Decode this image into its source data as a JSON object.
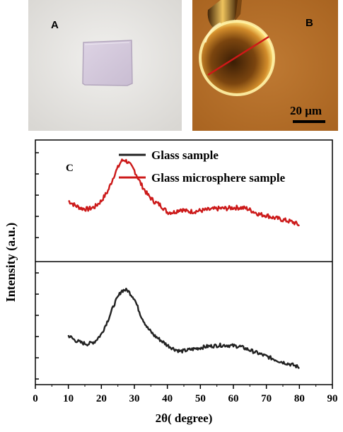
{
  "panels": {
    "a_label": "A",
    "b_label": "B",
    "c_label": "C",
    "scale_bar_label": "20 μm"
  },
  "colors": {
    "glass": "#222222",
    "microsphere": "#cc1a1a",
    "panel_b_background": "#b26d28"
  },
  "chart_data": {
    "type": "line",
    "panel": "C",
    "xlabel": "2θ( degree)",
    "ylabel": "Intensity (a.u.)",
    "xlim": [
      0,
      90
    ],
    "xticks": [
      0,
      10,
      20,
      30,
      40,
      50,
      60,
      70,
      80,
      90
    ],
    "y_tick_labels_shown": false,
    "layout": "two vertically stacked sub-panels sharing the x axis",
    "legend": "top-right",
    "series": [
      {
        "name": "Glass microsphere sample",
        "color": "#cc1a1a",
        "subpanel": "upper",
        "x": [
          10,
          12,
          14,
          16,
          18,
          20,
          22,
          24,
          26,
          27,
          28,
          30,
          32,
          34,
          36,
          38,
          40,
          42,
          44,
          46,
          48,
          50,
          52,
          54,
          56,
          58,
          60,
          62,
          64,
          66,
          68,
          70,
          72,
          74,
          76,
          78,
          80
        ],
        "y": [
          0.2,
          0.14,
          0.1,
          0.09,
          0.12,
          0.2,
          0.33,
          0.55,
          0.72,
          0.74,
          0.71,
          0.6,
          0.42,
          0.28,
          0.19,
          0.14,
          0.05,
          0.05,
          0.09,
          0.06,
          0.06,
          0.07,
          0.08,
          0.09,
          0.1,
          0.1,
          0.11,
          0.11,
          0.1,
          0.06,
          0.02,
          0.01,
          -0.02,
          -0.04,
          -0.06,
          -0.08,
          -0.12
        ]
      },
      {
        "name": "Glass sample",
        "color": "#222222",
        "subpanel": "lower",
        "x": [
          10,
          12,
          14,
          16,
          18,
          20,
          22,
          24,
          26,
          27,
          28,
          30,
          32,
          34,
          36,
          38,
          40,
          42,
          44,
          46,
          48,
          50,
          52,
          54,
          56,
          58,
          60,
          62,
          64,
          66,
          68,
          70,
          72,
          74,
          76,
          78,
          80
        ],
        "y": [
          0.7,
          0.62,
          0.58,
          0.56,
          0.6,
          0.72,
          0.95,
          1.22,
          1.42,
          1.44,
          1.43,
          1.3,
          1.02,
          0.82,
          0.7,
          0.62,
          0.54,
          0.48,
          0.44,
          0.46,
          0.48,
          0.5,
          0.52,
          0.53,
          0.54,
          0.54,
          0.53,
          0.52,
          0.48,
          0.44,
          0.4,
          0.36,
          0.32,
          0.28,
          0.25,
          0.22,
          0.18
        ]
      }
    ]
  }
}
